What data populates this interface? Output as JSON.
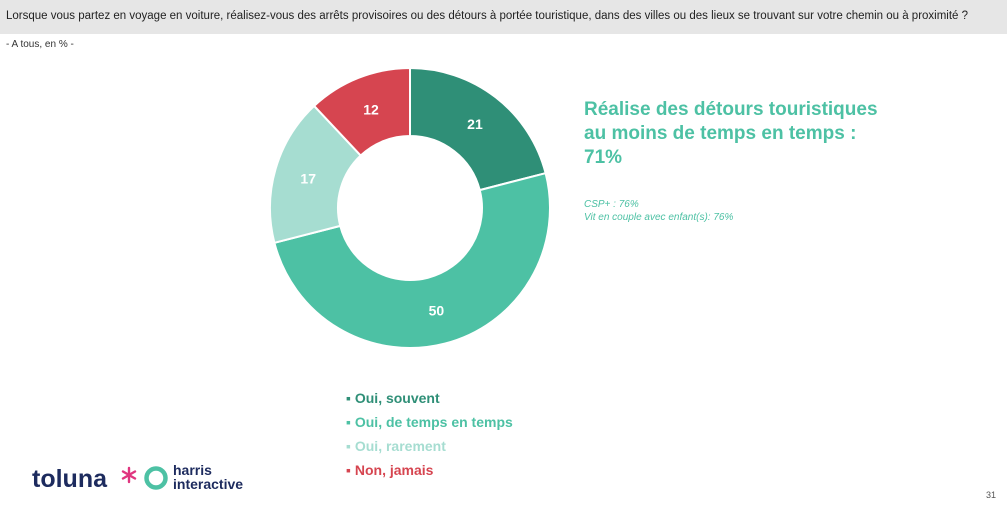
{
  "question": "Lorsque vous partez en voyage en voiture, réalisez-vous des arrêts provisoires ou des détours à portée touristique, dans des villes ou des lieux se trouvant sur votre chemin ou à proximité ?",
  "base": "- A tous, en % -",
  "headline": [
    "Réalise des détours touristiques",
    "au moins de temps en temps :",
    "71%"
  ],
  "subnotes": [
    "CSP+ : 76%",
    "Vit en couple avec enfant(s): 76%"
  ],
  "colors": {
    "souvent": "#2f8f77",
    "temps": "#4dc1a4",
    "rarement": "#a6ddd1",
    "jamais": "#d64550",
    "headline": "#4dc1a4"
  },
  "chart_data": {
    "type": "pie",
    "donut": true,
    "categories": [
      "Oui, souvent",
      "Oui, de temps en temps",
      "Oui, rarement",
      "Non, jamais"
    ],
    "values": [
      21,
      50,
      17,
      12
    ],
    "unit": "%",
    "legend_position": "bottom"
  },
  "logos": {
    "toluna": "toluna",
    "harris_line1": "harris",
    "harris_line2": "interactive"
  },
  "page_number": "31"
}
